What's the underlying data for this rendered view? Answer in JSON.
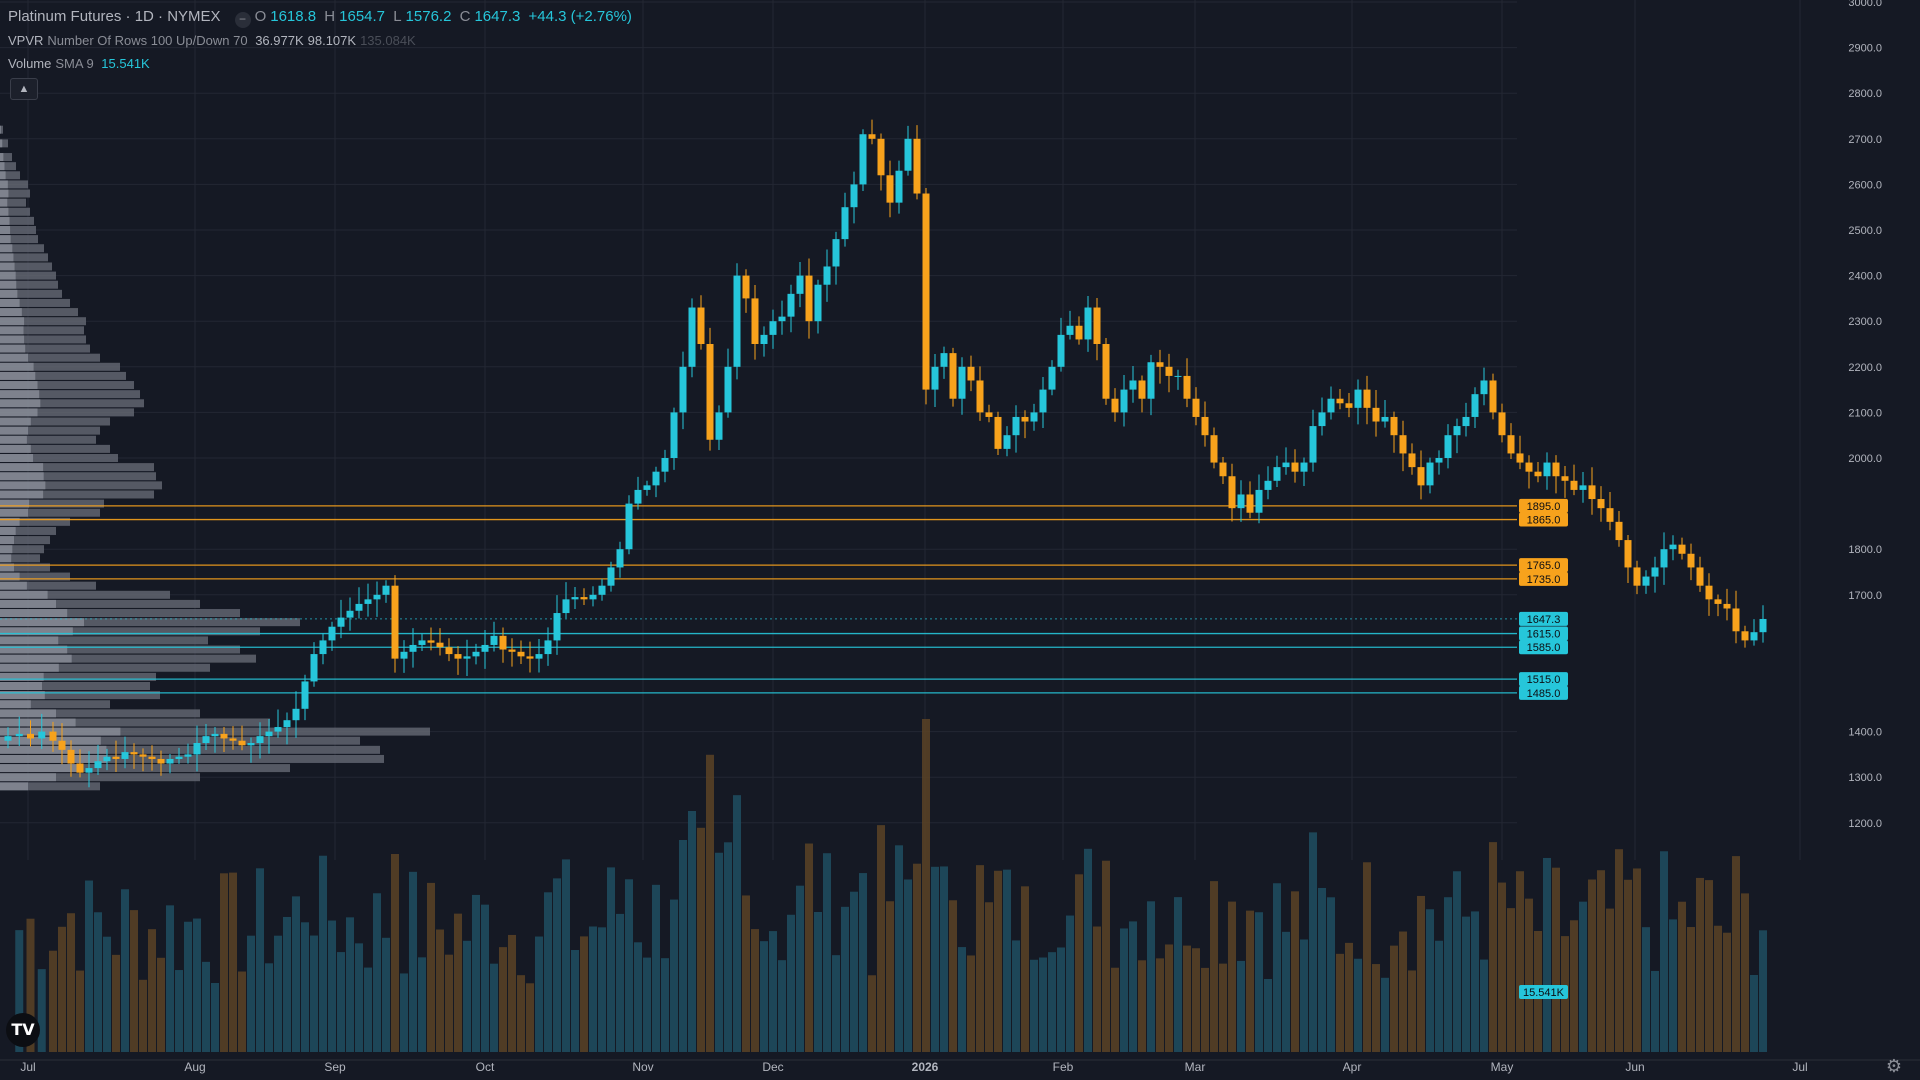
{
  "legend": {
    "symbol": "Platinum Futures · 1D · NYMEX",
    "status_icon": "minus-circle-icon",
    "o_label": "O",
    "o": "1618.8",
    "h_label": "H",
    "h": "1654.7",
    "l_label": "L",
    "l": "1576.2",
    "c_label": "C",
    "c": "1647.3",
    "change": "+44.3 (+2.76%)",
    "vpvr_name": "VPVR",
    "vpvr_params": "Number Of Rows 100 Up/Down 70",
    "vpvr_up": "36.977K",
    "vpvr_down": "98.107K",
    "vpvr_total": "135.084K",
    "vol_name": "Volume",
    "vol_params": "SMA 9",
    "vol_value": "15.541K",
    "collapse_icon": "chevron-up-icon"
  },
  "logo_text": "TV",
  "chart_data": {
    "type": "candlestick",
    "y_axis_ticks": [
      "3000.0",
      "2900.0",
      "2800.0",
      "2700.0",
      "2600.0",
      "2500.0",
      "2400.0",
      "2300.0",
      "2200.0",
      "2100.0",
      "2000.0",
      "1800.0",
      "1700.0",
      "1400.0",
      "1300.0",
      "1200.0"
    ],
    "x_axis_labels": [
      "Jul",
      "Aug",
      "Sep",
      "Oct",
      "Nov",
      "Dec",
      "2026",
      "Feb",
      "Mar",
      "Apr",
      "May",
      "Jun",
      "Jul"
    ],
    "ylim": [
      1150,
      3000
    ],
    "last_price": 1647.3,
    "volume_label": "15.541K",
    "levels": [
      {
        "value": 1895.0,
        "label": "1895.0",
        "color": "#f7a21c"
      },
      {
        "value": 1865.0,
        "label": "1865.0",
        "color": "#f7a21c"
      },
      {
        "value": 1765.0,
        "label": "1765.0",
        "color": "#f7a21c"
      },
      {
        "value": 1735.0,
        "label": "1735.0",
        "color": "#f7a21c"
      },
      {
        "value": 1647.3,
        "label": "1647.3",
        "color": "#26c6da"
      },
      {
        "value": 1615.0,
        "label": "1615.0",
        "color": "#26c6da"
      },
      {
        "value": 1585.0,
        "label": "1585.0",
        "color": "#26c6da"
      },
      {
        "value": 1515.0,
        "label": "1515.0",
        "color": "#26c6da"
      },
      {
        "value": 1485.0,
        "label": "1485.0",
        "color": "#26c6da"
      }
    ],
    "colors": {
      "up": "#26c6da",
      "down": "#f7a21c",
      "vol_up": "#1e4f61",
      "vol_down": "#5a4326",
      "grid": "#232733",
      "bg": "#151924"
    },
    "price_path": [
      [
        0,
        1390
      ],
      [
        5,
        1395
      ],
      [
        10,
        1385
      ],
      [
        15,
        1400
      ],
      [
        20,
        1380
      ],
      [
        24,
        1360
      ],
      [
        28,
        1330
      ],
      [
        32,
        1310
      ],
      [
        36,
        1320
      ],
      [
        40,
        1335
      ],
      [
        44,
        1345
      ],
      [
        48,
        1340
      ],
      [
        52,
        1355
      ],
      [
        56,
        1350
      ],
      [
        60,
        1345
      ],
      [
        64,
        1340
      ],
      [
        68,
        1330
      ],
      [
        72,
        1340
      ],
      [
        76,
        1345
      ],
      [
        80,
        1350
      ],
      [
        84,
        1375
      ],
      [
        88,
        1390
      ],
      [
        92,
        1395
      ],
      [
        96,
        1385
      ],
      [
        100,
        1380
      ],
      [
        104,
        1370
      ],
      [
        108,
        1375
      ],
      [
        112,
        1390
      ],
      [
        116,
        1400
      ],
      [
        120,
        1410
      ],
      [
        124,
        1425
      ],
      [
        128,
        1450
      ],
      [
        132,
        1510
      ],
      [
        136,
        1570
      ],
      [
        140,
        1600
      ],
      [
        144,
        1630
      ],
      [
        148,
        1650
      ],
      [
        152,
        1665
      ],
      [
        156,
        1680
      ],
      [
        160,
        1690
      ],
      [
        164,
        1700
      ],
      [
        168,
        1720
      ],
      [
        172,
        1560
      ],
      [
        176,
        1575
      ],
      [
        180,
        1590
      ],
      [
        184,
        1600
      ],
      [
        188,
        1595
      ],
      [
        192,
        1585
      ],
      [
        196,
        1570
      ],
      [
        200,
        1560
      ],
      [
        204,
        1565
      ],
      [
        208,
        1575
      ],
      [
        212,
        1590
      ],
      [
        216,
        1610
      ],
      [
        220,
        1580
      ],
      [
        224,
        1575
      ],
      [
        228,
        1565
      ],
      [
        232,
        1560
      ],
      [
        236,
        1570
      ],
      [
        240,
        1600
      ],
      [
        244,
        1660
      ],
      [
        248,
        1690
      ],
      [
        252,
        1695
      ],
      [
        256,
        1690
      ],
      [
        260,
        1700
      ],
      [
        264,
        1720
      ],
      [
        268,
        1760
      ],
      [
        272,
        1800
      ],
      [
        276,
        1900
      ],
      [
        280,
        1930
      ],
      [
        284,
        1940
      ],
      [
        288,
        1970
      ],
      [
        292,
        2000
      ],
      [
        296,
        2100
      ],
      [
        300,
        2200
      ],
      [
        304,
        2330
      ],
      [
        308,
        2250
      ],
      [
        312,
        2040
      ],
      [
        316,
        2100
      ],
      [
        320,
        2200
      ],
      [
        324,
        2400
      ],
      [
        328,
        2350
      ],
      [
        332,
        2250
      ],
      [
        336,
        2270
      ],
      [
        340,
        2300
      ],
      [
        344,
        2310
      ],
      [
        348,
        2360
      ],
      [
        352,
        2400
      ],
      [
        356,
        2300
      ],
      [
        360,
        2380
      ],
      [
        364,
        2420
      ],
      [
        368,
        2480
      ],
      [
        372,
        2550
      ],
      [
        376,
        2600
      ],
      [
        380,
        2710
      ],
      [
        384,
        2700
      ],
      [
        388,
        2620
      ],
      [
        392,
        2560
      ],
      [
        396,
        2630
      ],
      [
        400,
        2700
      ],
      [
        404,
        2580
      ],
      [
        408,
        2150
      ],
      [
        412,
        2200
      ],
      [
        416,
        2230
      ],
      [
        420,
        2130
      ],
      [
        424,
        2200
      ],
      [
        428,
        2170
      ],
      [
        432,
        2100
      ],
      [
        436,
        2090
      ],
      [
        440,
        2020
      ],
      [
        444,
        2050
      ],
      [
        448,
        2090
      ],
      [
        452,
        2080
      ],
      [
        456,
        2100
      ],
      [
        460,
        2150
      ],
      [
        464,
        2200
      ],
      [
        468,
        2270
      ],
      [
        472,
        2290
      ],
      [
        476,
        2260
      ],
      [
        480,
        2330
      ],
      [
        484,
        2250
      ],
      [
        488,
        2130
      ],
      [
        492,
        2100
      ],
      [
        496,
        2150
      ],
      [
        500,
        2170
      ],
      [
        504,
        2130
      ],
      [
        508,
        2210
      ],
      [
        512,
        2200
      ],
      [
        516,
        2180
      ],
      [
        520,
        2180
      ],
      [
        524,
        2130
      ],
      [
        528,
        2090
      ],
      [
        532,
        2050
      ],
      [
        536,
        1990
      ],
      [
        540,
        1960
      ],
      [
        544,
        1890
      ],
      [
        548,
        1920
      ],
      [
        552,
        1880
      ],
      [
        556,
        1930
      ],
      [
        560,
        1950
      ],
      [
        564,
        1980
      ],
      [
        568,
        1990
      ],
      [
        572,
        1970
      ],
      [
        576,
        1990
      ],
      [
        580,
        2070
      ],
      [
        584,
        2100
      ],
      [
        588,
        2130
      ],
      [
        592,
        2120
      ],
      [
        596,
        2110
      ],
      [
        600,
        2150
      ],
      [
        604,
        2110
      ],
      [
        608,
        2080
      ],
      [
        612,
        2090
      ],
      [
        616,
        2050
      ],
      [
        620,
        2010
      ],
      [
        624,
        1980
      ],
      [
        628,
        1940
      ],
      [
        632,
        1990
      ],
      [
        636,
        2000
      ],
      [
        640,
        2050
      ],
      [
        644,
        2070
      ],
      [
        648,
        2090
      ],
      [
        652,
        2140
      ],
      [
        656,
        2170
      ],
      [
        660,
        2100
      ],
      [
        664,
        2050
      ],
      [
        668,
        2010
      ],
      [
        672,
        1990
      ],
      [
        676,
        1970
      ],
      [
        680,
        1960
      ],
      [
        684,
        1990
      ],
      [
        688,
        1960
      ],
      [
        692,
        1950
      ],
      [
        696,
        1930
      ],
      [
        700,
        1940
      ],
      [
        704,
        1910
      ],
      [
        708,
        1890
      ],
      [
        712,
        1860
      ],
      [
        716,
        1820
      ],
      [
        720,
        1760
      ],
      [
        724,
        1720
      ],
      [
        728,
        1740
      ],
      [
        732,
        1760
      ],
      [
        736,
        1800
      ],
      [
        740,
        1810
      ],
      [
        744,
        1790
      ],
      [
        748,
        1760
      ],
      [
        752,
        1720
      ],
      [
        756,
        1690
      ],
      [
        760,
        1680
      ],
      [
        764,
        1670
      ],
      [
        768,
        1620
      ],
      [
        772,
        1600
      ],
      [
        776,
        1618
      ],
      [
        780,
        1647
      ]
    ],
    "vpvr_profile": [
      [
        2720,
        3
      ],
      [
        2690,
        8
      ],
      [
        2660,
        12
      ],
      [
        2640,
        16
      ],
      [
        2620,
        20
      ],
      [
        2600,
        28
      ],
      [
        2580,
        30
      ],
      [
        2560,
        26
      ],
      [
        2540,
        30
      ],
      [
        2520,
        34
      ],
      [
        2500,
        36
      ],
      [
        2480,
        38
      ],
      [
        2460,
        44
      ],
      [
        2440,
        48
      ],
      [
        2420,
        52
      ],
      [
        2400,
        56
      ],
      [
        2380,
        58
      ],
      [
        2360,
        62
      ],
      [
        2340,
        70
      ],
      [
        2320,
        78
      ],
      [
        2300,
        86
      ],
      [
        2280,
        84
      ],
      [
        2260,
        86
      ],
      [
        2240,
        90
      ],
      [
        2220,
        100
      ],
      [
        2200,
        120
      ],
      [
        2180,
        126
      ],
      [
        2160,
        134
      ],
      [
        2140,
        140
      ],
      [
        2120,
        144
      ],
      [
        2100,
        134
      ],
      [
        2080,
        110
      ],
      [
        2060,
        100
      ],
      [
        2040,
        96
      ],
      [
        2020,
        110
      ],
      [
        2000,
        118
      ],
      [
        1980,
        154
      ],
      [
        1960,
        156
      ],
      [
        1940,
        162
      ],
      [
        1920,
        154
      ],
      [
        1900,
        104
      ],
      [
        1880,
        100
      ],
      [
        1860,
        70
      ],
      [
        1840,
        56
      ],
      [
        1820,
        50
      ],
      [
        1800,
        44
      ],
      [
        1780,
        40
      ],
      [
        1760,
        50
      ],
      [
        1740,
        70
      ],
      [
        1720,
        96
      ],
      [
        1700,
        170
      ],
      [
        1680,
        200
      ],
      [
        1660,
        240
      ],
      [
        1640,
        300
      ],
      [
        1620,
        260
      ],
      [
        1600,
        208
      ],
      [
        1580,
        240
      ],
      [
        1560,
        256
      ],
      [
        1540,
        210
      ],
      [
        1520,
        156
      ],
      [
        1500,
        150
      ],
      [
        1480,
        160
      ],
      [
        1460,
        110
      ],
      [
        1440,
        200
      ],
      [
        1420,
        270
      ],
      [
        1400,
        430
      ],
      [
        1380,
        360
      ],
      [
        1360,
        380
      ],
      [
        1340,
        384
      ],
      [
        1320,
        290
      ],
      [
        1300,
        200
      ],
      [
        1280,
        100
      ]
    ]
  }
}
